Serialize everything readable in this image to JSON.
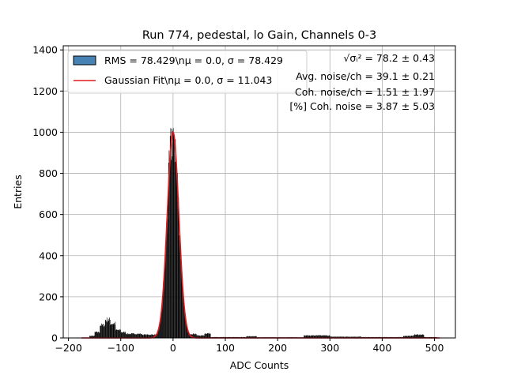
{
  "chart_data": {
    "type": "histogram",
    "title": "Run 774, pedestal, lo Gain, Channels 0-3",
    "xlabel": "ADC Counts",
    "ylabel": "Entries",
    "xlim": [
      -210,
      540
    ],
    "ylim": [
      0,
      1420
    ],
    "xticks": [
      -200,
      -100,
      0,
      100,
      200,
      300,
      400,
      500
    ],
    "xtick_labels": [
      "−200",
      "−100",
      "0",
      "100",
      "200",
      "300",
      "400",
      "500"
    ],
    "yticks": [
      0,
      200,
      400,
      600,
      800,
      1000,
      1200,
      1400
    ],
    "grid": true,
    "legend_position": "top-left",
    "histogram": {
      "legend_label": "RMS = 78.429\\nμ = 0.0, σ = 78.429",
      "color": "#000000",
      "legend_patch_color": "#4682b4",
      "peak_value": 1020,
      "regions": [
        {
          "x_start": -175,
          "x_end": -160,
          "level": 2
        },
        {
          "x_start": -160,
          "x_end": -150,
          "level": 10
        },
        {
          "x_start": -150,
          "x_end": -140,
          "level": 28
        },
        {
          "x_start": -140,
          "x_end": -130,
          "level": 62
        },
        {
          "x_start": -130,
          "x_end": -120,
          "level": 88
        },
        {
          "x_start": -120,
          "x_end": -110,
          "level": 70
        },
        {
          "x_start": -110,
          "x_end": -100,
          "level": 38
        },
        {
          "x_start": -100,
          "x_end": -90,
          "level": 28
        },
        {
          "x_start": -90,
          "x_end": -60,
          "level": 20
        },
        {
          "x_start": -60,
          "x_end": -30,
          "level": 16
        },
        {
          "x_start": -30,
          "x_end": -20,
          "level": 30
        },
        {
          "x_start": -20,
          "x_end": -18,
          "level": 55
        },
        {
          "x_start": 30,
          "x_end": 45,
          "level": 20
        },
        {
          "x_start": 45,
          "x_end": 60,
          "level": 12
        },
        {
          "x_start": 60,
          "x_end": 72,
          "level": 22
        },
        {
          "x_start": 72,
          "x_end": 140,
          "level": 4
        },
        {
          "x_start": 140,
          "x_end": 160,
          "level": 8
        },
        {
          "x_start": 160,
          "x_end": 250,
          "level": 3
        },
        {
          "x_start": 250,
          "x_end": 300,
          "level": 12
        },
        {
          "x_start": 300,
          "x_end": 360,
          "level": 6
        },
        {
          "x_start": 360,
          "x_end": 440,
          "level": 4
        },
        {
          "x_start": 440,
          "x_end": 460,
          "level": 10
        },
        {
          "x_start": 460,
          "x_end": 480,
          "level": 16
        },
        {
          "x_start": 480,
          "x_end": 505,
          "level": 4
        }
      ]
    },
    "fit": {
      "legend_label": "Gaussian Fit\\nμ = 0.0, σ = 11.043",
      "color": "#e41a1c",
      "mu": 0.0,
      "sigma": 11.043,
      "amplitude": 1000,
      "x_range": [
        -175,
        510
      ]
    },
    "stats": [
      {
        "label": "√σᵢ² = 78.2 ± 0.43"
      },
      {
        "label": "Avg. noise/ch = 39.1 ± 0.21"
      },
      {
        "label": "Coh. noise/ch = 1.51 ± 1.97"
      },
      {
        "label": "[%] Coh. noise = 3.87 ± 5.03"
      }
    ]
  }
}
